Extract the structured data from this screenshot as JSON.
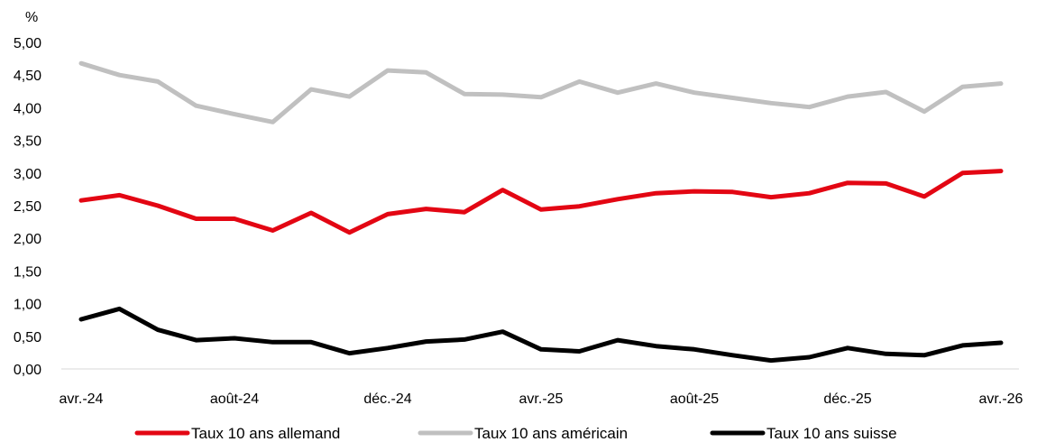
{
  "chart_data": {
    "type": "line",
    "unit_label": "%",
    "ylim": [
      0,
      5
    ],
    "y_ticks": [
      "0,00",
      "0,50",
      "1,00",
      "1,50",
      "2,00",
      "2,50",
      "3,00",
      "3,50",
      "4,00",
      "4,50",
      "5,00"
    ],
    "x": [
      "2024-04",
      "2024-05",
      "2024-06",
      "2024-07",
      "2024-08",
      "2024-09",
      "2024-10",
      "2024-11",
      "2024-12",
      "2025-01",
      "2025-02",
      "2025-03",
      "2025-04",
      "2025-05",
      "2025-06",
      "2025-07",
      "2025-08",
      "2025-09",
      "2025-10",
      "2025-11",
      "2025-12",
      "2026-01",
      "2026-02",
      "2026-03",
      "2026-04"
    ],
    "x_tick_labels": [
      {
        "index": 0,
        "label": "avr.-24"
      },
      {
        "index": 4,
        "label": "août-24"
      },
      {
        "index": 8,
        "label": "déc.-24"
      },
      {
        "index": 12,
        "label": "avr.-25"
      },
      {
        "index": 16,
        "label": "août-25"
      },
      {
        "index": 20,
        "label": "déc.-25"
      },
      {
        "index": 24,
        "label": "avr.-26"
      }
    ],
    "grid": false,
    "legend_position": "bottom",
    "series": [
      {
        "name": "Taux 10 ans allemand",
        "color": "#e30613",
        "values": [
          2.58,
          2.66,
          2.5,
          2.3,
          2.3,
          2.12,
          2.39,
          2.09,
          2.37,
          2.45,
          2.4,
          2.74,
          2.44,
          2.49,
          2.6,
          2.69,
          2.72,
          2.71,
          2.63,
          2.69,
          2.85,
          2.84,
          2.64,
          3.0,
          3.03
        ]
      },
      {
        "name": "Taux 10 ans américain",
        "color": "#c0c0c0",
        "values": [
          4.68,
          4.5,
          4.4,
          4.03,
          3.9,
          3.78,
          4.28,
          4.17,
          4.57,
          4.54,
          4.21,
          4.2,
          4.16,
          4.4,
          4.23,
          4.37,
          4.23,
          4.15,
          4.07,
          4.01,
          4.17,
          4.24,
          3.94,
          4.32,
          4.37
        ]
      },
      {
        "name": "Taux 10 ans suisse",
        "color": "#000000",
        "values": [
          0.76,
          0.92,
          0.6,
          0.44,
          0.47,
          0.41,
          0.41,
          0.24,
          0.32,
          0.42,
          0.45,
          0.57,
          0.3,
          0.27,
          0.44,
          0.35,
          0.3,
          0.21,
          0.13,
          0.18,
          0.32,
          0.23,
          0.21,
          0.36,
          0.4
        ]
      }
    ]
  }
}
